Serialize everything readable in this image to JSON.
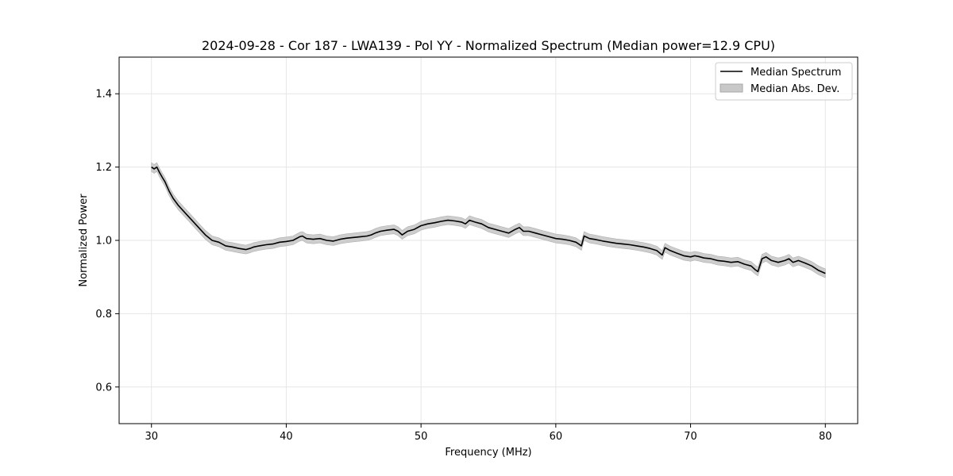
{
  "chart_data": {
    "type": "line",
    "title": "2024-09-28 - Cor 187 - LWA139 - Pol YY - Normalized Spectrum (Median power=12.9 CPU)",
    "xlabel": "Frequency (MHz)",
    "ylabel": "Normalized Power",
    "xlim": [
      27.6,
      82.4
    ],
    "ylim": [
      0.5,
      1.5
    ],
    "xticks": [
      30,
      40,
      50,
      60,
      70,
      80
    ],
    "xtick_labels": [
      "30",
      "40",
      "50",
      "60",
      "70",
      "80"
    ],
    "yticks": [
      0.6,
      0.8,
      1.0,
      1.2,
      1.4
    ],
    "ytick_labels": [
      "0.6",
      "0.8",
      "1.0",
      "1.2",
      "1.4"
    ],
    "grid": true,
    "legend_position": "top-right",
    "series": [
      {
        "name": "Median Spectrum",
        "color": "#000000",
        "x": [
          30.0,
          30.2,
          30.4,
          30.6,
          30.8,
          31.0,
          31.3,
          31.6,
          32.0,
          32.5,
          33.0,
          33.5,
          34.0,
          34.5,
          35.0,
          35.5,
          36.0,
          36.5,
          37.0,
          37.3,
          37.6,
          38.0,
          38.5,
          39.0,
          39.5,
          40.0,
          40.5,
          41.0,
          41.2,
          41.5,
          42.0,
          42.5,
          43.0,
          43.5,
          44.0,
          44.5,
          45.0,
          45.5,
          46.0,
          46.3,
          46.6,
          47.0,
          47.5,
          48.0,
          48.3,
          48.6,
          49.0,
          49.5,
          50.0,
          50.5,
          51.0,
          51.5,
          52.0,
          52.5,
          53.0,
          53.3,
          53.6,
          54.0,
          54.5,
          55.0,
          55.5,
          56.0,
          56.5,
          57.0,
          57.3,
          57.6,
          58.0,
          58.5,
          59.0,
          59.5,
          60.0,
          60.5,
          61.0,
          61.5,
          61.9,
          62.1,
          62.5,
          63.0,
          63.5,
          64.0,
          64.5,
          65.0,
          65.5,
          66.0,
          66.5,
          67.0,
          67.5,
          67.9,
          68.1,
          68.5,
          69.0,
          69.5,
          70.0,
          70.3,
          70.6,
          71.0,
          71.5,
          72.0,
          72.5,
          73.0,
          73.5,
          74.0,
          74.5,
          74.8,
          75.0,
          75.3,
          75.6,
          76.0,
          76.5,
          77.0,
          77.3,
          77.6,
          78.0,
          78.5,
          79.0,
          79.5,
          80.0
        ],
        "y": [
          1.2,
          1.195,
          1.2,
          1.185,
          1.172,
          1.16,
          1.135,
          1.115,
          1.095,
          1.075,
          1.055,
          1.035,
          1.015,
          1.0,
          0.995,
          0.985,
          0.982,
          0.978,
          0.975,
          0.978,
          0.982,
          0.985,
          0.988,
          0.99,
          0.995,
          0.997,
          1.0,
          1.01,
          1.012,
          1.005,
          1.003,
          1.005,
          1.0,
          0.998,
          1.003,
          1.006,
          1.008,
          1.01,
          1.012,
          1.015,
          1.02,
          1.025,
          1.028,
          1.03,
          1.025,
          1.015,
          1.025,
          1.03,
          1.04,
          1.045,
          1.048,
          1.052,
          1.055,
          1.053,
          1.05,
          1.045,
          1.055,
          1.05,
          1.045,
          1.035,
          1.03,
          1.025,
          1.02,
          1.03,
          1.035,
          1.025,
          1.025,
          1.02,
          1.015,
          1.01,
          1.005,
          1.003,
          1.0,
          0.995,
          0.985,
          1.012,
          1.005,
          1.002,
          0.998,
          0.995,
          0.992,
          0.99,
          0.988,
          0.985,
          0.982,
          0.978,
          0.972,
          0.96,
          0.98,
          0.972,
          0.965,
          0.958,
          0.955,
          0.958,
          0.956,
          0.952,
          0.95,
          0.945,
          0.943,
          0.94,
          0.942,
          0.935,
          0.93,
          0.92,
          0.915,
          0.95,
          0.955,
          0.945,
          0.94,
          0.945,
          0.95,
          0.94,
          0.945,
          0.938,
          0.93,
          0.918,
          0.91
        ]
      },
      {
        "name": "Median Abs. Dev.",
        "color": "#c8c8c8",
        "type": "band",
        "half_width": 0.012
      }
    ]
  }
}
